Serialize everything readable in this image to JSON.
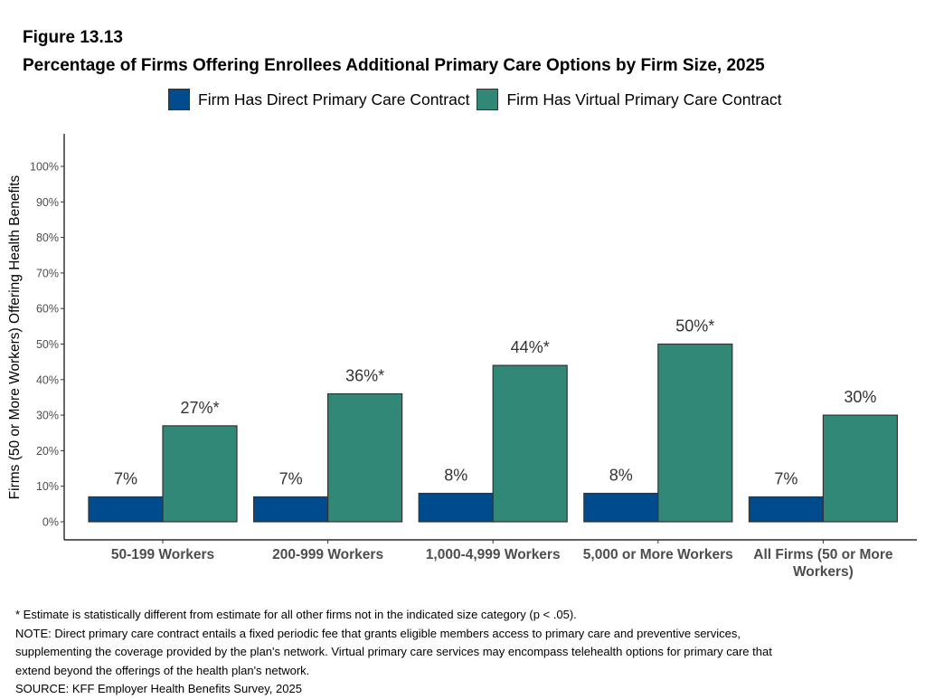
{
  "figure": {
    "label": "Figure 13.13",
    "title": "Percentage of Firms Offering Enrollees Additional Primary Care Options by Firm Size, 2025"
  },
  "chart_data": {
    "type": "bar",
    "title": "Percentage of Firms Offering Enrollees Additional Primary Care Options by Firm Size, 2025",
    "ylabel": "Firms (50 or More Workers) Offering Health Benefits",
    "xlabel": "",
    "ylim": [
      0,
      100
    ],
    "yticks": [
      "0%",
      "10%",
      "20%",
      "30%",
      "40%",
      "50%",
      "60%",
      "70%",
      "80%",
      "90%",
      "100%"
    ],
    "categories": [
      [
        "50-199 Workers"
      ],
      [
        "200-999 Workers"
      ],
      [
        "1,000-4,999 Workers"
      ],
      [
        "5,000 or More Workers"
      ],
      [
        "All Firms (50 or More",
        "Workers)"
      ]
    ],
    "series": [
      {
        "name": "Firm Has Direct Primary Care Contract",
        "color": "#004b8d",
        "values": [
          7,
          7,
          8,
          8,
          7
        ],
        "labels": [
          "7%",
          "7%",
          "8%",
          "8%",
          "7%"
        ]
      },
      {
        "name": "Firm Has Virtual Primary Care Contract",
        "color": "#318877",
        "values": [
          27,
          36,
          44,
          50,
          30
        ],
        "labels": [
          "27%*",
          "36%*",
          "44%*",
          "50%*",
          "30%"
        ]
      }
    ],
    "legend_position": "top",
    "grid": false
  },
  "notes": [
    "* Estimate is statistically different from estimate for all other firms not in the indicated size category (p < .05).",
    "NOTE: Direct primary care contract entails a fixed periodic fee that grants eligible members access to primary care and preventive services,",
    "supplementing the coverage provided by the plan's network. Virtual primary care services may encompass telehealth options for primary care that",
    "extend beyond the offerings of the health plan's network.",
    "SOURCE: KFF Employer Health Benefits Survey, 2025"
  ]
}
